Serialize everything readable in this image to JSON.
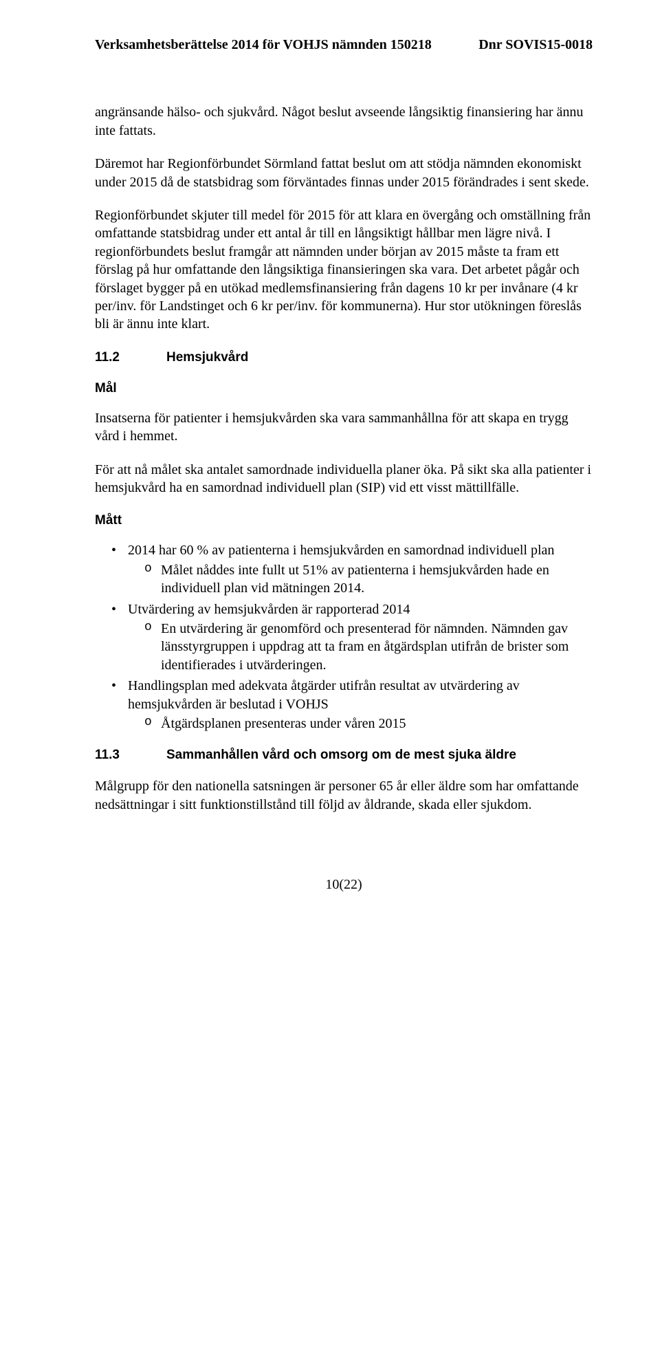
{
  "header": {
    "left": "Verksamhetsberättelse 2014 för VOHJS nämnden 150218",
    "right": "Dnr SOVIS15-0018"
  },
  "paragraphs": {
    "p1": "angränsande hälso- och sjukvård. Något beslut avseende långsiktig finansiering har ännu inte fattats.",
    "p2": "Däremot har Regionförbundet Sörmland fattat beslut om att stödja nämnden ekonomiskt under 2015 då de statsbidrag som förväntades finnas under 2015 förändrades i sent skede.",
    "p3": "Regionförbundet skjuter till medel för 2015 för att klara en övergång och omställning från omfattande statsbidrag under ett antal år till en långsiktigt hållbar men lägre nivå. I regionförbundets beslut framgår att nämnden under början av 2015 måste ta fram ett förslag på hur omfattande den långsiktiga finansieringen ska vara. Det arbetet pågår och förslaget bygger på en utökad medlemsfinansiering från dagens 10 kr per invånare (4 kr per/inv. för Landstinget och 6 kr per/inv. för kommunerna). Hur stor utökningen föreslås bli är ännu inte klart."
  },
  "section_11_2": {
    "num": "11.2",
    "title": "Hemsjukvård"
  },
  "mal_label": "Mål",
  "mal_paragraphs": {
    "m1": "Insatserna för patienter i hemsjukvården ska vara sammanhållna för att skapa en trygg vård i hemmet.",
    "m2": "För att nå målet ska antalet samordnade individuella planer öka. På sikt ska alla patienter i hemsjukvård ha en samordnad individuell plan (SIP) vid ett visst mättillfälle."
  },
  "matt_label": "Mått",
  "bullets": {
    "b1": "2014 har 60 % av patienterna i hemsjukvården en samordnad individuell plan",
    "b1_sub1": "Målet nåddes inte fullt ut 51% av patienterna i hemsjukvården hade en individuell plan vid mätningen 2014.",
    "b2": "Utvärdering av hemsjukvården är rapporterad 2014",
    "b2_sub1": "En utvärdering är genomförd och presenterad för nämnden. Nämnden gav länsstyrgruppen i uppdrag att ta fram en åtgärdsplan utifrån de brister som identifierades i utvärderingen.",
    "b3": "Handlingsplan med adekvata åtgärder utifrån resultat av utvärdering av hemsjukvården är beslutad i VOHJS",
    "b3_sub1": "Åtgärdsplanen presenteras under våren 2015"
  },
  "section_11_3": {
    "num": "11.3",
    "title": "Sammanhållen vård och omsorg om de mest sjuka äldre"
  },
  "p_11_3": "Målgrupp för den nationella satsningen är personer 65 år eller äldre som har omfattande nedsättningar i sitt funktionstillstånd till följd av åldrande, skada eller sjukdom.",
  "footer": "10(22)"
}
